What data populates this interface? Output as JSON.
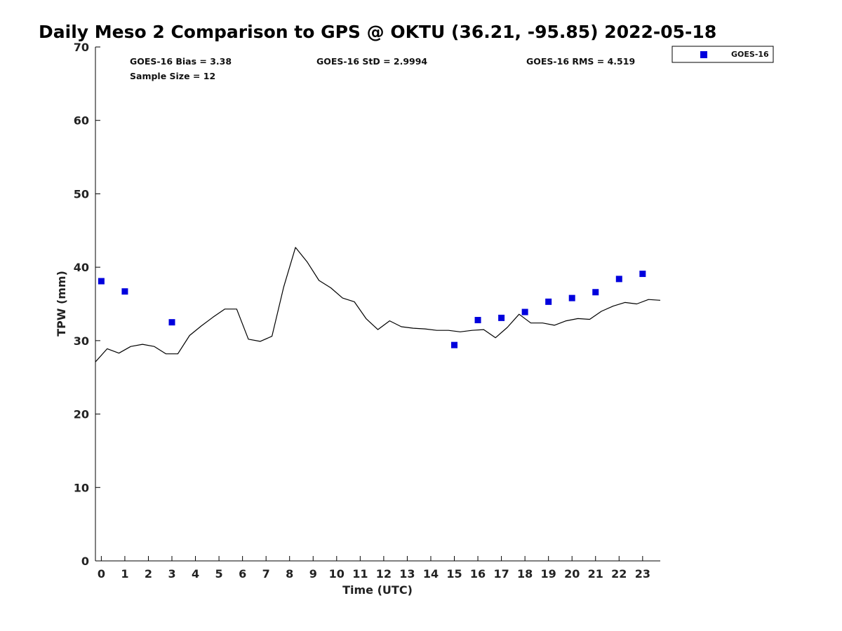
{
  "title": "Daily Meso 2 Comparison to GPS @ OKTU (36.21, -95.85) 2022-05-18",
  "stats": {
    "bias": "GOES-16 Bias = 3.38",
    "sample_size": "Sample Size = 12",
    "std": "GOES-16 StD = 2.9994",
    "rms": "GOES-16 RMS = 4.519"
  },
  "legend": {
    "label": "GOES-16",
    "color": "#0000dd"
  },
  "chart_data": {
    "type": "scatter",
    "title": "Daily Meso 2 Comparison to GPS @ OKTU (36.21, -95.85) 2022-05-18",
    "xlabel": "Time (UTC)",
    "ylabel": "TPW (mm)",
    "xlim": [
      -0.25,
      23.75
    ],
    "ylim": [
      0,
      70
    ],
    "xticks": [
      0,
      1,
      2,
      3,
      4,
      5,
      6,
      7,
      8,
      9,
      10,
      11,
      12,
      13,
      14,
      15,
      16,
      17,
      18,
      19,
      20,
      21,
      22,
      23
    ],
    "yticks": [
      0,
      10,
      20,
      30,
      40,
      50,
      60,
      70
    ],
    "grid": false,
    "legend_position": "outside top-right",
    "series": [
      {
        "name": "GOES-16",
        "type": "scatter",
        "marker": "square",
        "color": "#0000dd",
        "x": [
          0,
          1,
          3,
          15,
          16,
          17,
          18,
          19,
          20,
          21,
          22,
          23
        ],
        "y": [
          38.1,
          36.7,
          32.5,
          29.4,
          32.8,
          33.1,
          33.9,
          35.3,
          35.8,
          36.6,
          38.4,
          39.1
        ]
      },
      {
        "type": "line",
        "color": "#000000",
        "x": [
          -0.25,
          0.25,
          0.75,
          1.25,
          1.75,
          2.25,
          2.75,
          3.25,
          3.75,
          4.25,
          4.75,
          5.25,
          5.75,
          6.25,
          6.75,
          7.25,
          7.75,
          8.25,
          8.75,
          9.25,
          9.75,
          10.25,
          10.75,
          11.25,
          11.75,
          12.25,
          12.75,
          13.25,
          13.75,
          14.25,
          14.75,
          15.25,
          15.75,
          16.25,
          16.75,
          17.25,
          17.75,
          18.25,
          18.75,
          19.25,
          19.75,
          20.25,
          20.75,
          21.25,
          21.75,
          22.25,
          22.75,
          23.25,
          23.75
        ],
        "y": [
          27.1,
          28.9,
          28.3,
          29.2,
          29.5,
          29.2,
          28.2,
          28.2,
          30.7,
          32.0,
          33.2,
          34.3,
          34.3,
          30.2,
          29.9,
          30.6,
          37.3,
          42.7,
          40.7,
          38.2,
          37.2,
          35.8,
          35.3,
          33.0,
          31.5,
          32.7,
          31.9,
          31.7,
          31.6,
          31.4,
          31.4,
          31.2,
          31.4,
          31.5,
          30.4,
          31.8,
          33.6,
          32.4,
          32.4,
          32.1,
          32.7,
          33.0,
          32.9,
          34.0,
          34.7,
          35.2,
          35.0,
          35.6,
          35.5
        ]
      }
    ]
  }
}
